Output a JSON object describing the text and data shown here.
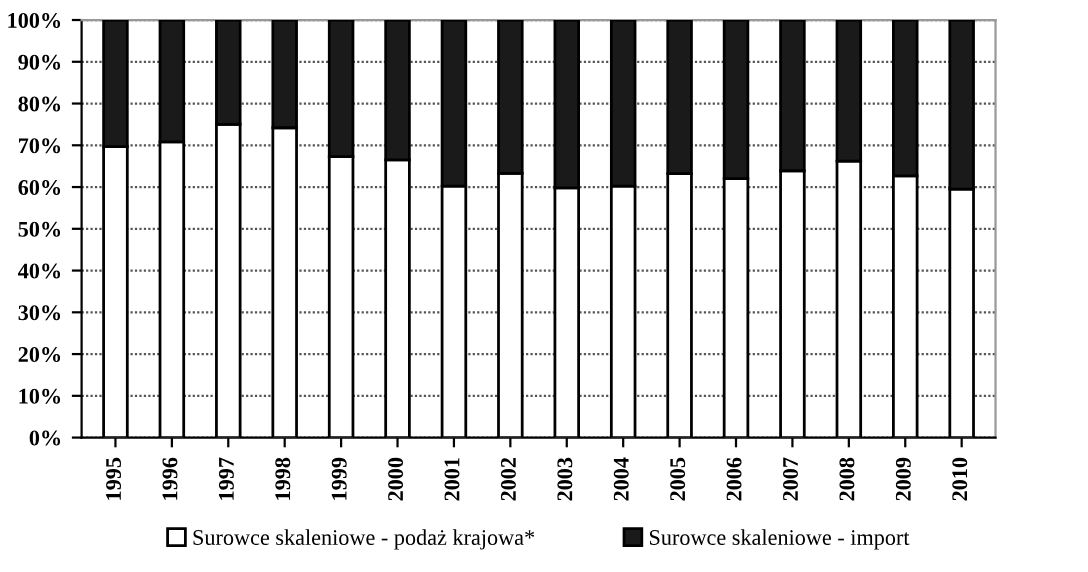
{
  "chart_data": {
    "type": "bar",
    "stacked": true,
    "categories": [
      "1995",
      "1996",
      "1997",
      "1998",
      "1999",
      "2000",
      "2001",
      "2002",
      "2003",
      "2004",
      "2005",
      "2006",
      "2007",
      "2008",
      "2009",
      "2010"
    ],
    "series": [
      {
        "name": "Surowce skaleniowe - podaż krajowa*",
        "color": "#ffffff",
        "values": [
          69.7,
          70.8,
          75,
          74.2,
          67.3,
          66.5,
          60.2,
          63.3,
          59.8,
          60.2,
          63.2,
          62,
          63.9,
          66.2,
          62.7,
          59.5
        ]
      },
      {
        "name": "Surowce skaleniowe - import",
        "color": "#1a1a1a",
        "values": [
          30.3,
          29.2,
          25,
          25.8,
          32.7,
          33.5,
          39.8,
          36.7,
          40.2,
          39.8,
          36.8,
          38,
          36.1,
          33.8,
          37.3,
          40.5
        ]
      }
    ],
    "ylim": [
      0,
      100
    ],
    "yticks": [
      {
        "value": 0,
        "label": "0%"
      },
      {
        "value": 10,
        "label": "10%"
      },
      {
        "value": 20,
        "label": "20%"
      },
      {
        "value": 30,
        "label": "30%"
      },
      {
        "value": 40,
        "label": "40%"
      },
      {
        "value": 50,
        "label": "50%"
      },
      {
        "value": 60,
        "label": "60%"
      },
      {
        "value": 70,
        "label": "70%"
      },
      {
        "value": 80,
        "label": "80%"
      },
      {
        "value": 90,
        "label": "90%"
      },
      {
        "value": 100,
        "label": "100%"
      }
    ],
    "grid": "y",
    "legend": "bottom"
  }
}
